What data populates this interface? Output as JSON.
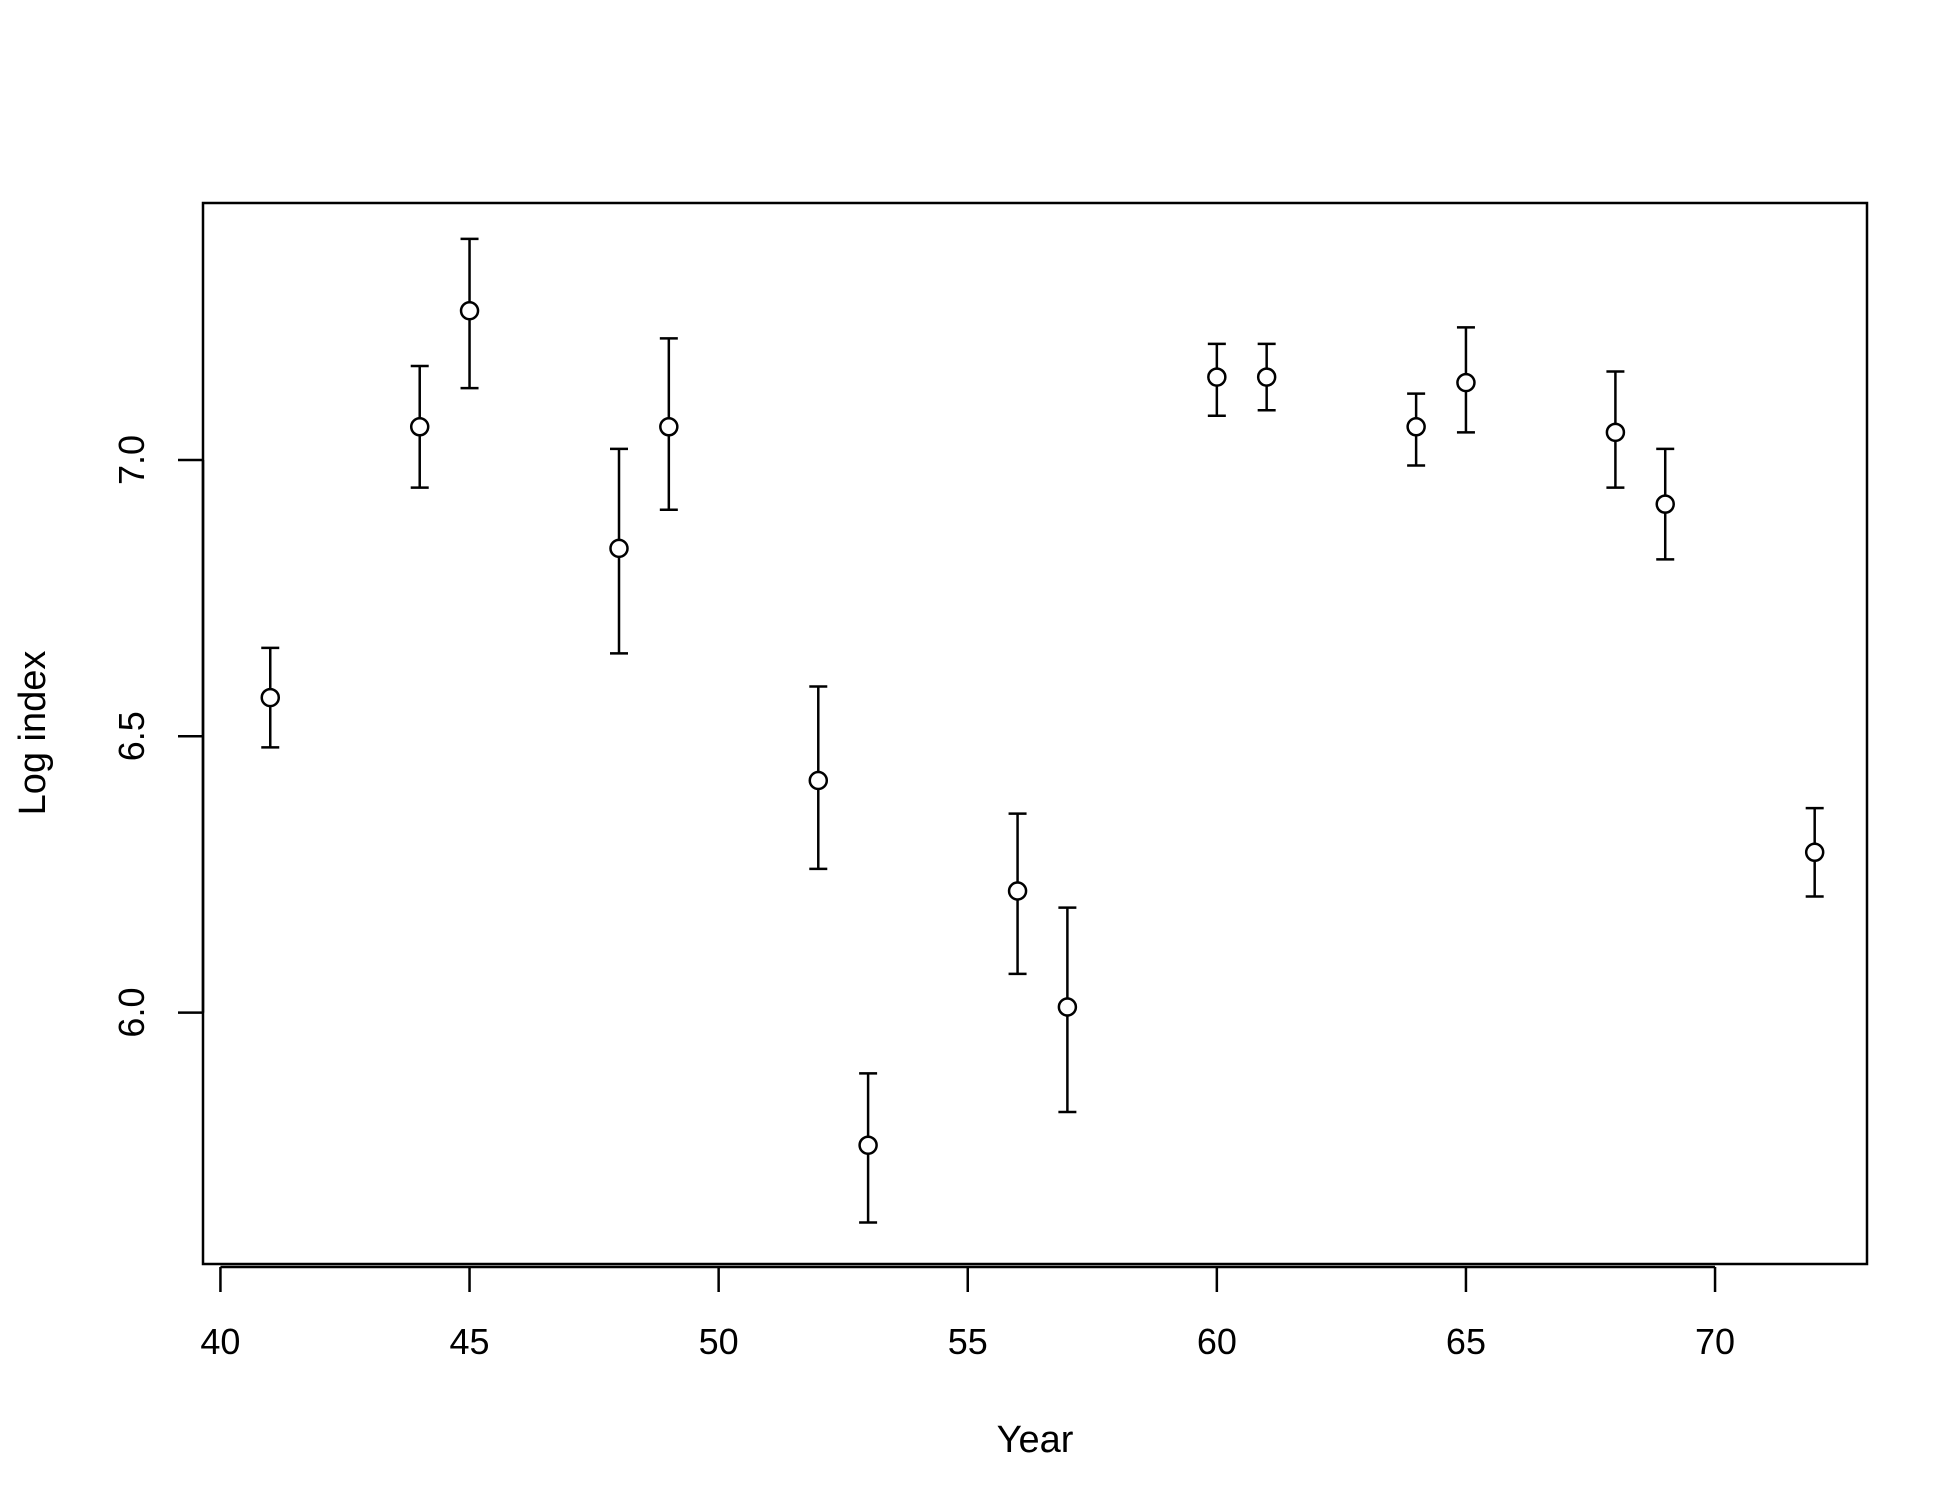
{
  "chart_data": {
    "type": "scatter",
    "title": "",
    "xlabel": "Year",
    "ylabel": "Log index",
    "xlim": [
      39.65,
      73.05
    ],
    "ylim": [
      5.545,
      7.465
    ],
    "x_ticks": [
      "40",
      "45",
      "50",
      "55",
      "60",
      "65",
      "70"
    ],
    "y_ticks": [
      "6.0",
      "6.5",
      "7.0"
    ],
    "grid": false,
    "legend": "none",
    "marker": "open-circle",
    "error_bars": true,
    "series": [
      {
        "points": [
          {
            "x": 41,
            "y": 6.57,
            "lower": 6.48,
            "upper": 6.66
          },
          {
            "x": 44,
            "y": 7.06,
            "lower": 6.95,
            "upper": 7.17
          },
          {
            "x": 45,
            "y": 7.27,
            "lower": 7.13,
            "upper": 7.4
          },
          {
            "x": 48,
            "y": 6.84,
            "lower": 6.65,
            "upper": 7.02
          },
          {
            "x": 49,
            "y": 7.06,
            "lower": 6.91,
            "upper": 7.22
          },
          {
            "x": 52,
            "y": 6.42,
            "lower": 6.26,
            "upper": 6.59
          },
          {
            "x": 53,
            "y": 5.76,
            "lower": 5.62,
            "upper": 5.89
          },
          {
            "x": 56,
            "y": 6.22,
            "lower": 6.07,
            "upper": 6.36
          },
          {
            "x": 57,
            "y": 6.01,
            "lower": 5.82,
            "upper": 6.19
          },
          {
            "x": 60,
            "y": 7.15,
            "lower": 7.08,
            "upper": 7.21
          },
          {
            "x": 61,
            "y": 7.15,
            "lower": 7.09,
            "upper": 7.21
          },
          {
            "x": 64,
            "y": 7.06,
            "lower": 6.99,
            "upper": 7.12
          },
          {
            "x": 65,
            "y": 7.14,
            "lower": 7.05,
            "upper": 7.24
          },
          {
            "x": 68,
            "y": 7.05,
            "lower": 6.95,
            "upper": 7.16
          },
          {
            "x": 69,
            "y": 6.92,
            "lower": 6.82,
            "upper": 7.02
          },
          {
            "x": 72,
            "y": 6.29,
            "lower": 6.21,
            "upper": 6.37
          }
        ]
      }
    ]
  }
}
